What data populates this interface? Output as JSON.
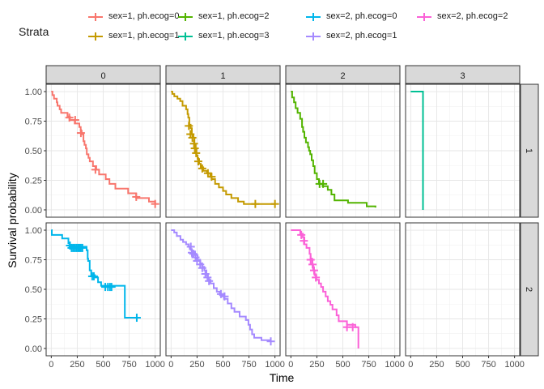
{
  "chart_data": {
    "type": "line",
    "subtype": "kaplan-meier-faceted",
    "xlabel": "Time",
    "ylabel": "Survival probability",
    "xlim": [
      0,
      1000
    ],
    "ylim": [
      0,
      1
    ],
    "xticks": [
      "0",
      "250",
      "500",
      "750",
      "1000"
    ],
    "yticks": [
      "0.00",
      "0.25",
      "0.50",
      "0.75",
      "1.00"
    ],
    "col_strips": [
      "0",
      "1",
      "2",
      "3"
    ],
    "row_strips": [
      "1",
      "2"
    ],
    "legend": {
      "title": "Strata",
      "position": "top",
      "entries": [
        {
          "label": "sex=1, ph.ecog=0",
          "color": "#F8766D"
        },
        {
          "label": "sex=1, ph.ecog=1",
          "color": "#C49A00"
        },
        {
          "label": "sex=1, ph.ecog=2",
          "color": "#53B400"
        },
        {
          "label": "sex=1, ph.ecog=3",
          "color": "#00C094"
        },
        {
          "label": "sex=2, ph.ecog=0",
          "color": "#00B6EB"
        },
        {
          "label": "sex=2, ph.ecog=1",
          "color": "#A58AFF"
        },
        {
          "label": "sex=2, ph.ecog=2",
          "color": "#FB61D7"
        }
      ]
    },
    "series": [
      {
        "legend_index": 0,
        "row": 0,
        "col": 0,
        "points": [
          [
            0,
            1.0
          ],
          [
            11,
            0.97
          ],
          [
            26,
            0.94
          ],
          [
            53,
            0.91
          ],
          [
            60,
            0.88
          ],
          [
            81,
            0.85
          ],
          [
            95,
            0.82
          ],
          [
            156,
            0.79
          ],
          [
            180,
            0.76
          ],
          [
            226,
            0.73
          ],
          [
            270,
            0.7
          ],
          [
            283,
            0.67
          ],
          [
            293,
            0.64
          ],
          [
            310,
            0.58
          ],
          [
            320,
            0.55
          ],
          [
            333,
            0.52
          ],
          [
            342,
            0.47
          ],
          [
            358,
            0.44
          ],
          [
            371,
            0.41
          ],
          [
            401,
            0.37
          ],
          [
            433,
            0.34
          ],
          [
            460,
            0.3
          ],
          [
            524,
            0.26
          ],
          [
            560,
            0.22
          ],
          [
            617,
            0.18
          ],
          [
            740,
            0.14
          ],
          [
            817,
            0.1
          ],
          [
            940,
            0.07
          ],
          [
            1000,
            0.05
          ]
        ],
        "censor": [
          [
            174,
            0.78
          ],
          [
            230,
            0.76
          ],
          [
            285,
            0.65
          ],
          [
            425,
            0.34
          ],
          [
            818,
            0.11
          ],
          [
            1000,
            0.05
          ]
        ]
      },
      {
        "legend_index": 1,
        "row": 0,
        "col": 1,
        "points": [
          [
            0,
            1.0
          ],
          [
            12,
            0.98
          ],
          [
            31,
            0.96
          ],
          [
            61,
            0.94
          ],
          [
            88,
            0.92
          ],
          [
            110,
            0.88
          ],
          [
            145,
            0.85
          ],
          [
            159,
            0.81
          ],
          [
            166,
            0.78
          ],
          [
            176,
            0.72
          ],
          [
            188,
            0.69
          ],
          [
            200,
            0.64
          ],
          [
            215,
            0.61
          ],
          [
            225,
            0.55
          ],
          [
            237,
            0.52
          ],
          [
            245,
            0.46
          ],
          [
            255,
            0.43
          ],
          [
            270,
            0.39
          ],
          [
            286,
            0.36
          ],
          [
            310,
            0.33
          ],
          [
            345,
            0.31
          ],
          [
            377,
            0.28
          ],
          [
            390,
            0.26
          ],
          [
            424,
            0.22
          ],
          [
            460,
            0.19
          ],
          [
            500,
            0.16
          ],
          [
            530,
            0.13
          ],
          [
            580,
            0.1
          ],
          [
            645,
            0.07
          ],
          [
            700,
            0.05
          ],
          [
            1000,
            0.05
          ]
        ],
        "censor": [
          [
            171,
            0.71
          ],
          [
            186,
            0.64
          ],
          [
            205,
            0.61
          ],
          [
            220,
            0.56
          ],
          [
            228,
            0.52
          ],
          [
            241,
            0.48
          ],
          [
            262,
            0.41
          ],
          [
            300,
            0.35
          ],
          [
            355,
            0.31
          ],
          [
            390,
            0.28
          ],
          [
            811,
            0.05
          ],
          [
            1000,
            0.05
          ]
        ]
      },
      {
        "legend_index": 2,
        "row": 0,
        "col": 2,
        "points": [
          [
            0,
            1.0
          ],
          [
            12,
            0.95
          ],
          [
            30,
            0.91
          ],
          [
            46,
            0.86
          ],
          [
            64,
            0.82
          ],
          [
            89,
            0.77
          ],
          [
            107,
            0.7
          ],
          [
            117,
            0.66
          ],
          [
            130,
            0.61
          ],
          [
            145,
            0.57
          ],
          [
            165,
            0.53
          ],
          [
            175,
            0.5
          ],
          [
            186,
            0.47
          ],
          [
            200,
            0.42
          ],
          [
            215,
            0.37
          ],
          [
            229,
            0.31
          ],
          [
            250,
            0.26
          ],
          [
            270,
            0.22
          ],
          [
            305,
            0.2
          ],
          [
            355,
            0.17
          ],
          [
            390,
            0.13
          ],
          [
            420,
            0.08
          ],
          [
            550,
            0.06
          ],
          [
            730,
            0.03
          ],
          [
            814,
            0.02
          ]
        ],
        "censor": [
          [
            276,
            0.22
          ],
          [
            310,
            0.22
          ]
        ]
      },
      {
        "legend_index": 3,
        "row": 0,
        "col": 3,
        "points": [
          [
            0,
            1.0
          ],
          [
            118,
            1.0
          ],
          [
            118,
            0.0
          ]
        ],
        "censor": []
      },
      {
        "legend_index": 4,
        "row": 1,
        "col": 0,
        "points": [
          [
            0,
            1.0
          ],
          [
            5,
            0.96
          ],
          [
            105,
            0.93
          ],
          [
            165,
            0.89
          ],
          [
            175,
            0.86
          ],
          [
            310,
            0.86
          ],
          [
            340,
            0.83
          ],
          [
            350,
            0.76
          ],
          [
            355,
            0.74
          ],
          [
            370,
            0.66
          ],
          [
            385,
            0.62
          ],
          [
            420,
            0.6
          ],
          [
            450,
            0.56
          ],
          [
            480,
            0.53
          ],
          [
            708,
            0.53
          ],
          [
            708,
            0.26
          ],
          [
            820,
            0.26
          ]
        ],
        "censor": [
          [
            180,
            0.87
          ],
          [
            195,
            0.85
          ],
          [
            210,
            0.85
          ],
          [
            225,
            0.85
          ],
          [
            240,
            0.85
          ],
          [
            255,
            0.85
          ],
          [
            270,
            0.85
          ],
          [
            285,
            0.85
          ],
          [
            300,
            0.85
          ],
          [
            394,
            0.61
          ],
          [
            410,
            0.61
          ],
          [
            520,
            0.52
          ],
          [
            545,
            0.52
          ],
          [
            565,
            0.52
          ],
          [
            580,
            0.52
          ],
          [
            823,
            0.26
          ]
        ]
      },
      {
        "legend_index": 5,
        "row": 1,
        "col": 1,
        "points": [
          [
            0,
            1.0
          ],
          [
            30,
            0.98
          ],
          [
            55,
            0.95
          ],
          [
            90,
            0.92
          ],
          [
            115,
            0.9
          ],
          [
            145,
            0.88
          ],
          [
            170,
            0.86
          ],
          [
            180,
            0.84
          ],
          [
            200,
            0.82
          ],
          [
            230,
            0.79
          ],
          [
            255,
            0.75
          ],
          [
            280,
            0.72
          ],
          [
            300,
            0.69
          ],
          [
            320,
            0.66
          ],
          [
            340,
            0.62
          ],
          [
            355,
            0.58
          ],
          [
            380,
            0.55
          ],
          [
            410,
            0.51
          ],
          [
            440,
            0.48
          ],
          [
            470,
            0.45
          ],
          [
            510,
            0.42
          ],
          [
            545,
            0.38
          ],
          [
            580,
            0.34
          ],
          [
            610,
            0.31
          ],
          [
            660,
            0.27
          ],
          [
            720,
            0.24
          ],
          [
            745,
            0.2
          ],
          [
            760,
            0.16
          ],
          [
            780,
            0.12
          ],
          [
            800,
            0.09
          ],
          [
            870,
            0.07
          ],
          [
            965,
            0.07
          ]
        ],
        "censor": [
          [
            190,
            0.86
          ],
          [
            200,
            0.81
          ],
          [
            215,
            0.8
          ],
          [
            235,
            0.77
          ],
          [
            250,
            0.74
          ],
          [
            280,
            0.71
          ],
          [
            300,
            0.68
          ],
          [
            330,
            0.63
          ],
          [
            350,
            0.6
          ],
          [
            365,
            0.57
          ],
          [
            480,
            0.46
          ],
          [
            515,
            0.44
          ],
          [
            960,
            0.06
          ]
        ]
      },
      {
        "legend_index": 6,
        "row": 1,
        "col": 2,
        "points": [
          [
            0,
            1.0
          ],
          [
            90,
            0.97
          ],
          [
            115,
            0.94
          ],
          [
            130,
            0.88
          ],
          [
            150,
            0.85
          ],
          [
            180,
            0.8
          ],
          [
            190,
            0.76
          ],
          [
            205,
            0.71
          ],
          [
            215,
            0.66
          ],
          [
            228,
            0.62
          ],
          [
            245,
            0.58
          ],
          [
            270,
            0.55
          ],
          [
            290,
            0.52
          ],
          [
            310,
            0.48
          ],
          [
            335,
            0.44
          ],
          [
            355,
            0.4
          ],
          [
            380,
            0.37
          ],
          [
            400,
            0.33
          ],
          [
            440,
            0.28
          ],
          [
            460,
            0.23
          ],
          [
            540,
            0.2
          ],
          [
            620,
            0.18
          ],
          [
            650,
            0.18
          ],
          [
            650,
            0.0
          ]
        ],
        "censor": [
          [
            100,
            0.96
          ],
          [
            125,
            0.91
          ],
          [
            190,
            0.75
          ],
          [
            208,
            0.71
          ],
          [
            223,
            0.66
          ],
          [
            240,
            0.6
          ],
          [
            540,
            0.18
          ],
          [
            595,
            0.18
          ]
        ]
      }
    ]
  }
}
